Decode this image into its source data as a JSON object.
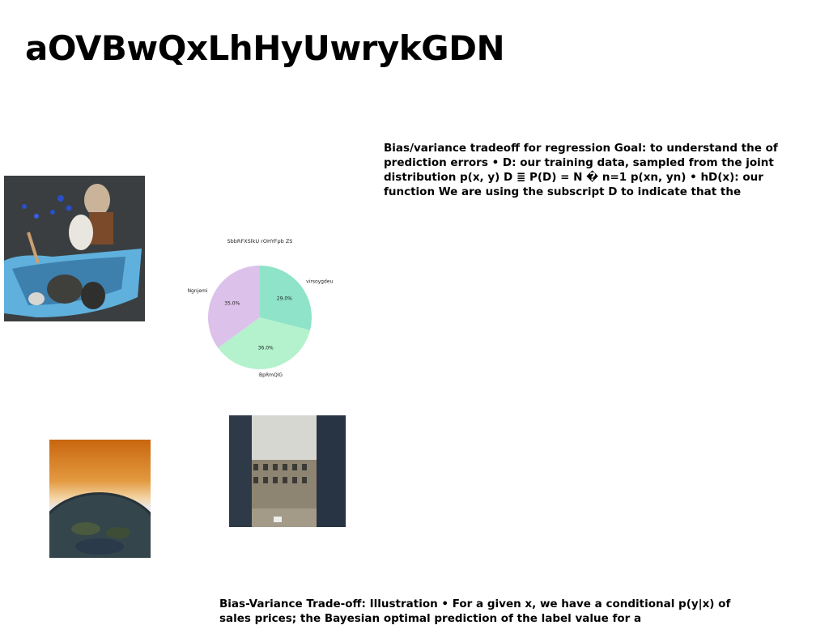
{
  "page": {
    "title": "aOVBwQxLhHyUwrykGDN"
  },
  "text_top": "Bias/variance tradeoff for regression Goal: to understand the of prediction errors • D: our training data, sampled from the joint distribution p(x, y) D ≣ P(D) = N � n=1 p(xn, yn) • hD(x): our function We are using the subscript D to indicate that the",
  "text_bottom": "Bias-Variance Trade-off: Illustration • For a given x, we have a conditional p(y|x) of sales prices; the Bayesian optimal prediction of the label value for a",
  "chart_data": {
    "type": "pie",
    "title": "SbbRFXSlkU rOHYFpb ZS",
    "slices": [
      {
        "label": "virsoygdeu",
        "value": 29.0,
        "pct_label": "29.0%",
        "color": "#8ee3c8"
      },
      {
        "label": "BpRmQlG",
        "value": 36.0,
        "pct_label": "36.0%",
        "color": "#b3f2cc"
      },
      {
        "label": "Ngnjemi",
        "value": 35.0,
        "pct_label": "35.0%",
        "color": "#dcc1ea"
      }
    ],
    "start_angle_deg": 90,
    "direction": "clockwise"
  }
}
